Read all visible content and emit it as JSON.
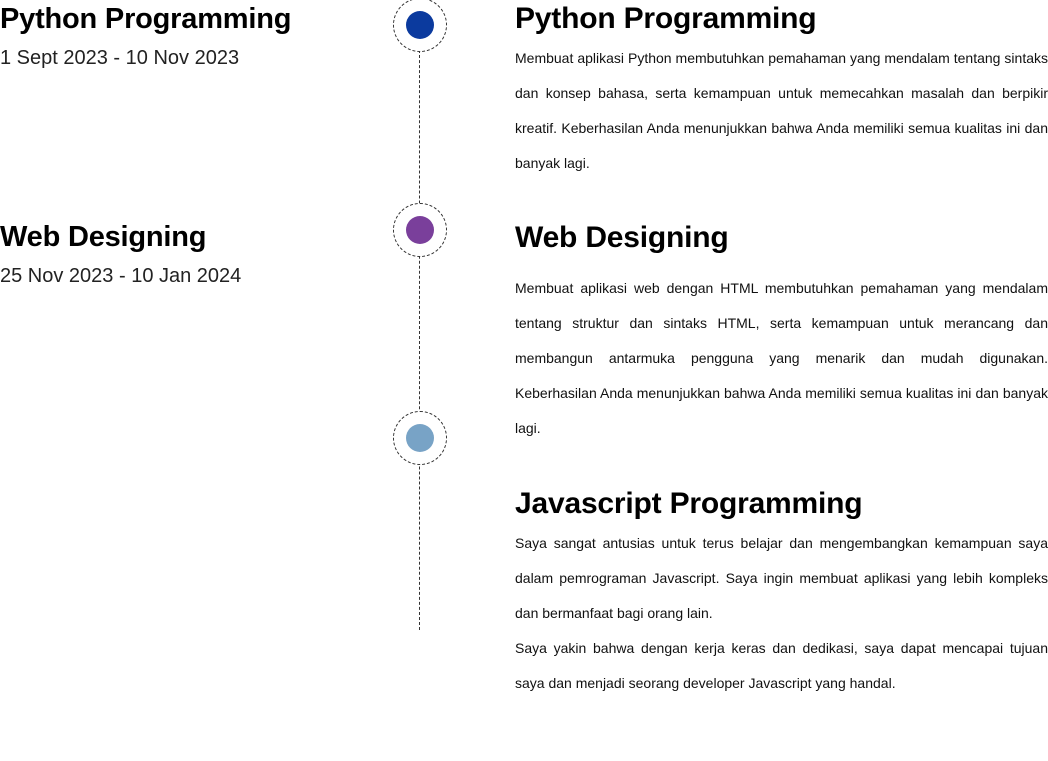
{
  "timeline": {
    "left_items": [
      {
        "title": "Python Programming",
        "date": "1 Sept 2023 - 10 Nov 2023"
      },
      {
        "title": "Web Designing",
        "date": "25 Nov 2023 - 10 Jan 2024"
      }
    ],
    "nodes": [
      {
        "color": "#0b3a9e"
      },
      {
        "color": "#7a3f9b"
      },
      {
        "color": "#78a3c6"
      }
    ],
    "right_items": [
      {
        "title": "Python Programming",
        "paragraphs": [
          "Membuat aplikasi Python membutuhkan pemahaman yang mendalam tentang sintaks dan konsep bahasa, serta kemampuan untuk memecahkan masalah dan berpikir kreatif. Keberhasilan Anda menunjukkan bahwa Anda memiliki semua kualitas ini dan banyak lagi."
        ]
      },
      {
        "title": "Web Designing",
        "paragraphs": [
          "Membuat aplikasi web dengan HTML membutuhkan pemahaman yang mendalam tentang struktur dan sintaks HTML, serta kemampuan untuk merancang dan membangun antarmuka pengguna yang menarik dan mudah digunakan. Keberhasilan Anda menunjukkan bahwa Anda memiliki semua kualitas ini dan banyak lagi."
        ]
      },
      {
        "title": "Javascript Programming",
        "paragraphs": [
          "Saya sangat antusias untuk terus belajar dan mengembangkan kemampuan saya dalam pemrograman Javascript. Saya ingin membuat aplikasi yang lebih kompleks dan bermanfaat bagi orang lain.",
          "Saya yakin bahwa dengan kerja keras dan dedikasi, saya dapat mencapai tujuan saya dan menjadi seorang developer Javascript yang handal."
        ]
      }
    ]
  }
}
